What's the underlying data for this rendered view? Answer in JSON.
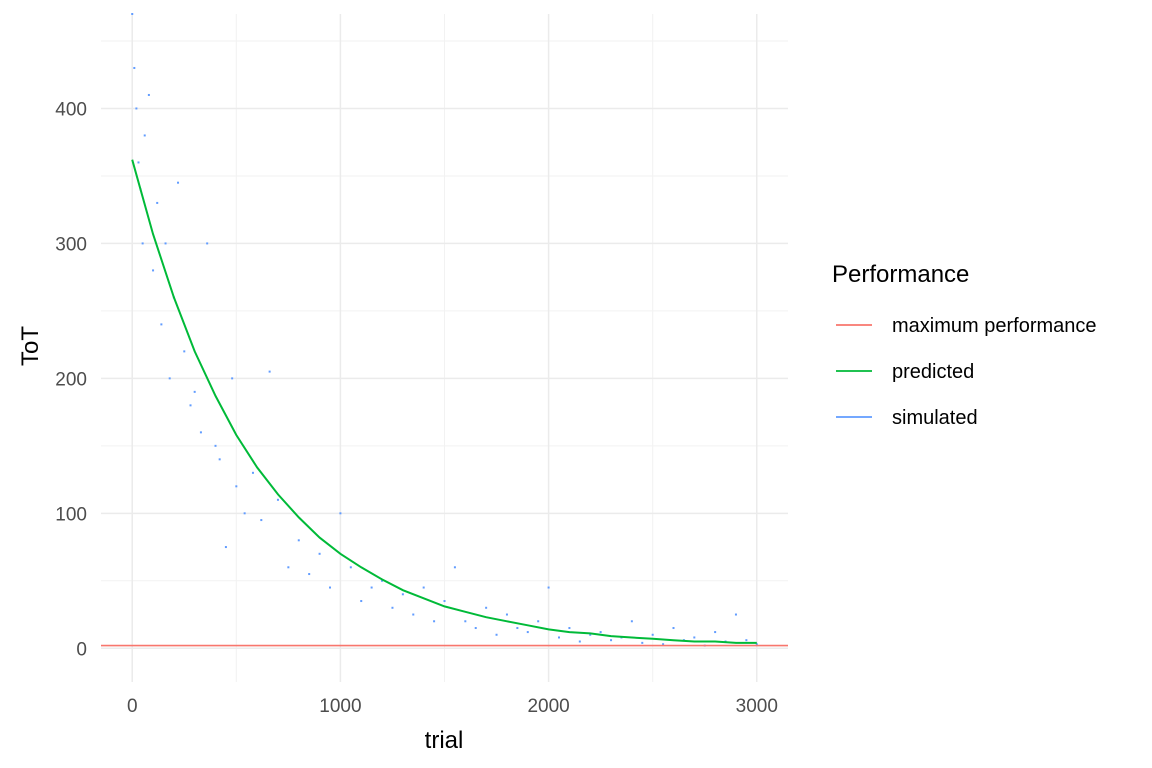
{
  "chart_data": {
    "type": "scatter",
    "title": "",
    "xlabel": "trial",
    "ylabel": "ToT",
    "xlim": [
      -150,
      3150
    ],
    "ylim": [
      -25,
      470
    ],
    "x_ticks": [
      0,
      1000,
      2000,
      3000
    ],
    "x_tick_labels": [
      "0",
      "1000",
      "2000",
      "3000"
    ],
    "y_ticks": [
      0,
      100,
      200,
      300,
      400
    ],
    "y_tick_labels": [
      "0",
      "100",
      "200",
      "300",
      "400"
    ],
    "grid": true,
    "legend": {
      "title": "Performance",
      "position": "right",
      "entries": [
        {
          "label": "maximum performance",
          "color": "#F8766D"
        },
        {
          "label": "predicted",
          "color": "#00BA38"
        },
        {
          "label": "simulated",
          "color": "#619CFF"
        }
      ]
    },
    "series": [
      {
        "name": "maximum performance",
        "kind": "hline",
        "color": "#F8766D",
        "y": 2
      },
      {
        "name": "predicted",
        "kind": "line",
        "color": "#00BA38",
        "x": [
          0,
          100,
          200,
          300,
          400,
          500,
          600,
          700,
          800,
          900,
          1000,
          1100,
          1200,
          1300,
          1400,
          1500,
          1600,
          1700,
          1800,
          1900,
          2000,
          2100,
          2200,
          2300,
          2400,
          2500,
          2600,
          2700,
          2800,
          2900,
          3000
        ],
        "y": [
          362,
          307,
          260,
          220,
          187,
          158,
          134,
          114,
          97,
          82,
          70,
          60,
          51,
          43,
          37,
          31,
          27,
          23,
          20,
          17,
          14,
          12,
          11,
          9,
          8,
          7,
          6,
          5,
          5,
          4,
          4
        ]
      },
      {
        "name": "simulated",
        "kind": "scatter",
        "color": "#619CFF",
        "x": [
          0,
          10,
          20,
          30,
          40,
          50,
          60,
          80,
          100,
          120,
          140,
          160,
          180,
          200,
          220,
          250,
          280,
          300,
          330,
          360,
          400,
          420,
          450,
          480,
          500,
          540,
          580,
          620,
          660,
          700,
          750,
          800,
          850,
          900,
          950,
          1000,
          1050,
          1100,
          1150,
          1200,
          1250,
          1300,
          1350,
          1400,
          1450,
          1500,
          1550,
          1600,
          1650,
          1700,
          1750,
          1800,
          1850,
          1900,
          1950,
          2000,
          2050,
          2100,
          2150,
          2200,
          2250,
          2300,
          2350,
          2400,
          2450,
          2500,
          2550,
          2600,
          2650,
          2700,
          2750,
          2800,
          2850,
          2900,
          2950,
          3000
        ],
        "y": [
          470,
          430,
          400,
          360,
          340,
          300,
          380,
          410,
          280,
          330,
          240,
          300,
          200,
          260,
          345,
          220,
          180,
          190,
          160,
          300,
          150,
          140,
          75,
          200,
          120,
          100,
          130,
          95,
          205,
          110,
          60,
          80,
          55,
          70,
          45,
          100,
          60,
          35,
          45,
          50,
          30,
          40,
          25,
          45,
          20,
          35,
          60,
          20,
          15,
          30,
          10,
          25,
          15,
          12,
          20,
          45,
          8,
          15,
          5,
          10,
          12,
          6,
          8,
          20,
          4,
          10,
          3,
          15,
          6,
          8,
          2,
          12,
          5,
          25,
          6,
          3
        ]
      }
    ]
  }
}
